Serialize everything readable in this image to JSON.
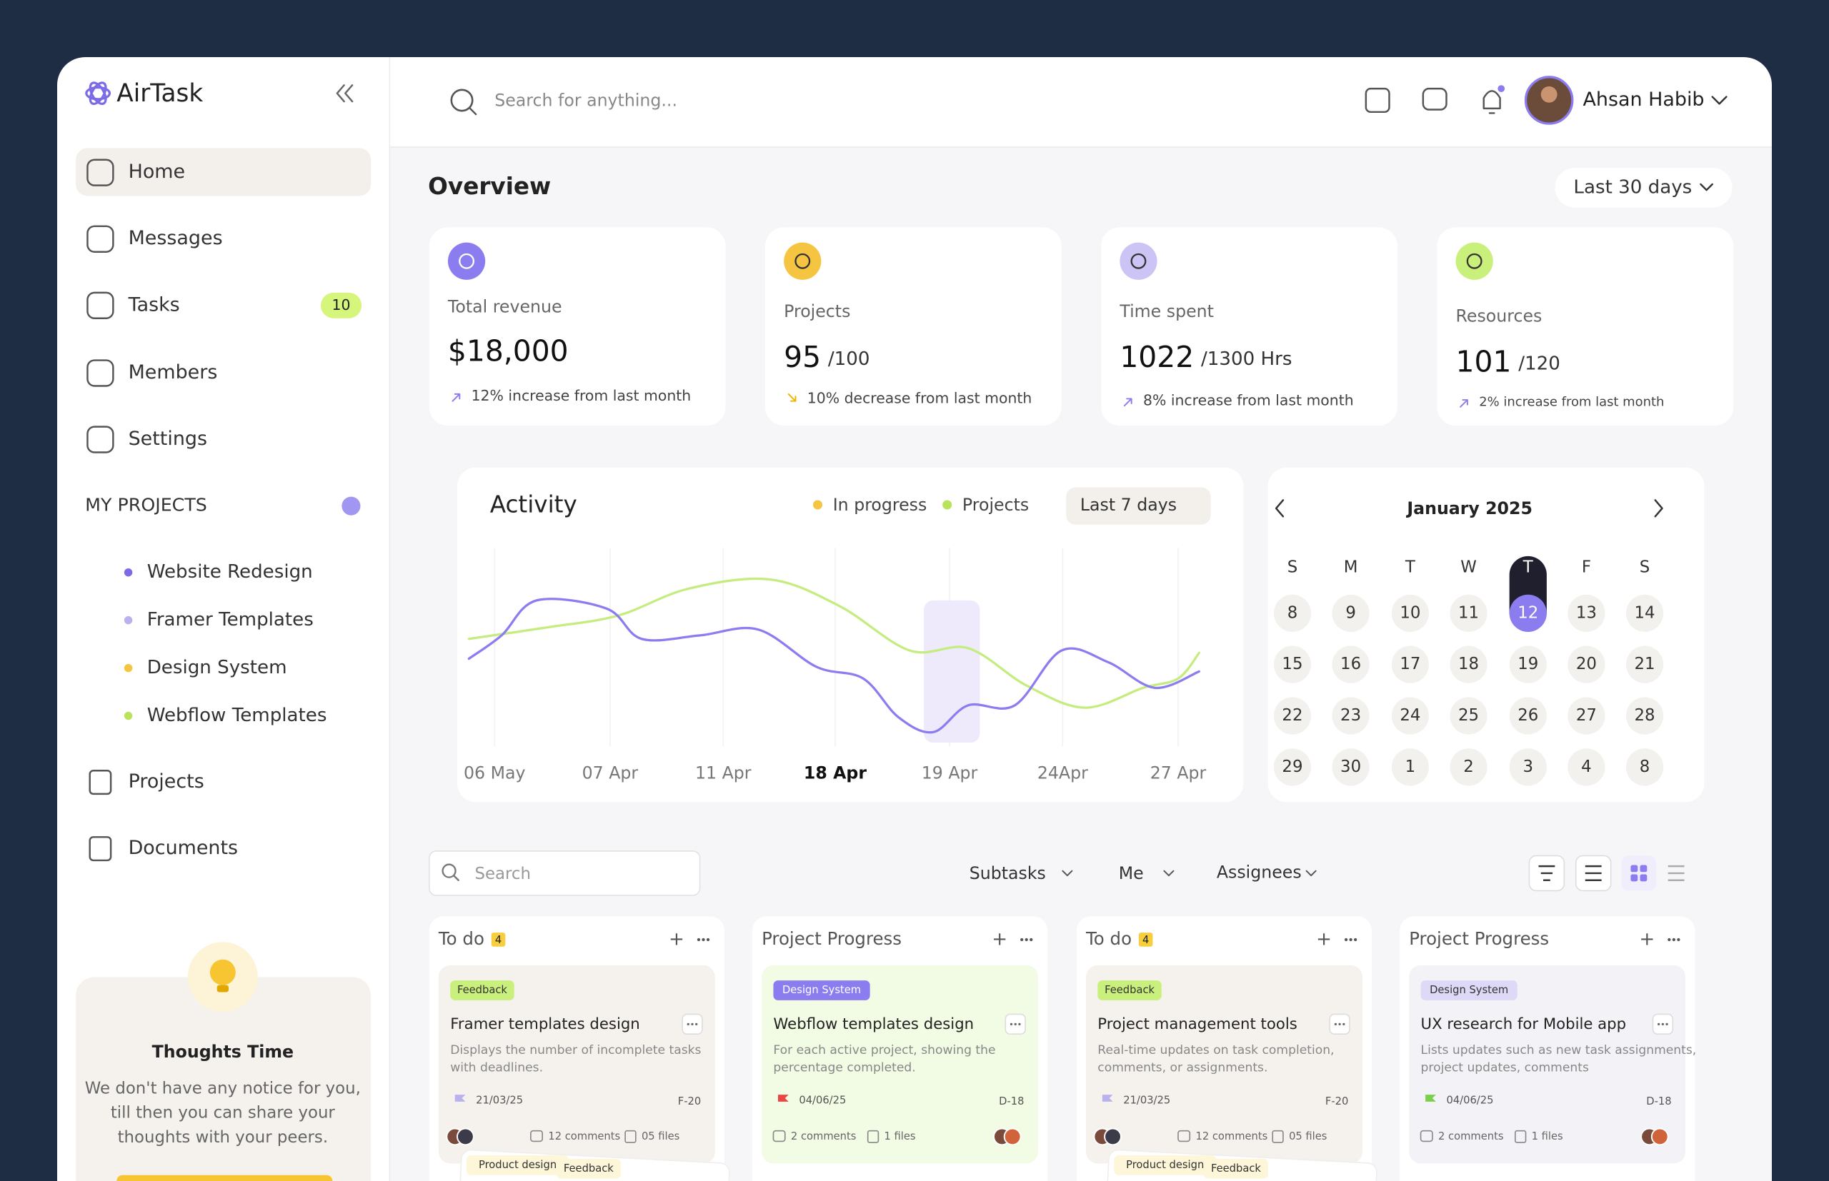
{
  "sidebar": {
    "brand": "AirTask",
    "nav": [
      "Home",
      "Messages",
      "Tasks",
      "Members",
      "Settings"
    ],
    "tasks_badge": 10,
    "projects_heading": "MY PROJECTS",
    "projects": [
      "Website Redesign",
      "Framer Templates",
      "Design System",
      "Webflow Templates"
    ],
    "nav2": [
      "Projects",
      "Documents"
    ],
    "thoughts": {
      "title": "Thoughts Time",
      "text": [
        "We don't have any notice for you,",
        "till then you can share your",
        "thoughts with your peers."
      ]
    }
  },
  "header": {
    "search": "Search for anything...",
    "user": "Ahsan Habib"
  },
  "overview": {
    "title": "Overview",
    "range": "Last 30 days",
    "cards": [
      {
        "label": "Total revenue",
        "value": "$18,000",
        "note": "12% increase from last month"
      },
      {
        "label": "Projects",
        "value": 95,
        "suffix": "/100",
        "note": "10% decrease from last month"
      },
      {
        "label": "Time spent",
        "value": 1022,
        "suffix": "/1300 Hrs",
        "note": "8% increase from last month"
      },
      {
        "label": "Resources",
        "value": 101,
        "suffix": "/120",
        "note": "2% increase from last month"
      }
    ]
  },
  "activity": {
    "title": "Activity",
    "legend": [
      "In progress",
      "Projects"
    ],
    "range": "Last 7 days",
    "x_labels": [
      "06 May",
      "07 Apr",
      "11 Apr",
      "18 Apr",
      "19 Apr",
      "24Apr",
      "27 Apr"
    ]
  },
  "calendar": {
    "month": "January 2025",
    "weekdays": [
      "S",
      "M",
      "T",
      "W",
      "T",
      "F",
      "S"
    ],
    "days": [
      [
        8,
        9,
        10,
        11,
        12,
        13,
        14
      ],
      [
        15,
        16,
        17,
        18,
        19,
        20,
        21
      ],
      [
        22,
        23,
        24,
        25,
        26,
        27,
        28
      ],
      [
        29,
        30,
        1,
        2,
        3,
        4,
        8
      ]
    ]
  },
  "board": {
    "search": "Search",
    "filters": [
      "Subtasks",
      "Me",
      "Assignees"
    ],
    "columns": [
      {
        "title": "To do",
        "count": 4,
        "card": {
          "tag": "Feedback",
          "title": "Framer templates design",
          "desc": [
            "Displays the number of incomplete tasks",
            "with deadlines."
          ],
          "date": "21/03/25",
          "id": "F-20",
          "comments": "12 comments",
          "files": "05 files"
        },
        "next_tags": [
          "Product design",
          "Feedback"
        ]
      },
      {
        "title": "Project Progress",
        "card": {
          "tag": "Design System",
          "title": "Webflow templates design",
          "desc": [
            "For each active project, showing the",
            "percentage completed."
          ],
          "date": "04/06/25",
          "id": "D-18",
          "comments": "2 comments",
          "files": "1 files"
        }
      },
      {
        "title": "To do",
        "count": 4,
        "card": {
          "tag": "Feedback",
          "title": "Project management tools",
          "desc": [
            "Real-time updates on task completion,",
            "comments, or assignments."
          ],
          "date": "21/03/25",
          "id": "F-20",
          "comments": "12 comments",
          "files": "05 files"
        },
        "next_tags": [
          "Product design",
          "Feedback"
        ]
      },
      {
        "title": "Project Progress",
        "card": {
          "tag": "Design System",
          "title": "UX research  for Mobile app",
          "desc": [
            "Lists updates such as new task assignments,",
            "project updates, comments"
          ],
          "date": "04/06/25",
          "id": "D-18",
          "comments": "2 comments",
          "files": "1 files"
        }
      }
    ]
  }
}
